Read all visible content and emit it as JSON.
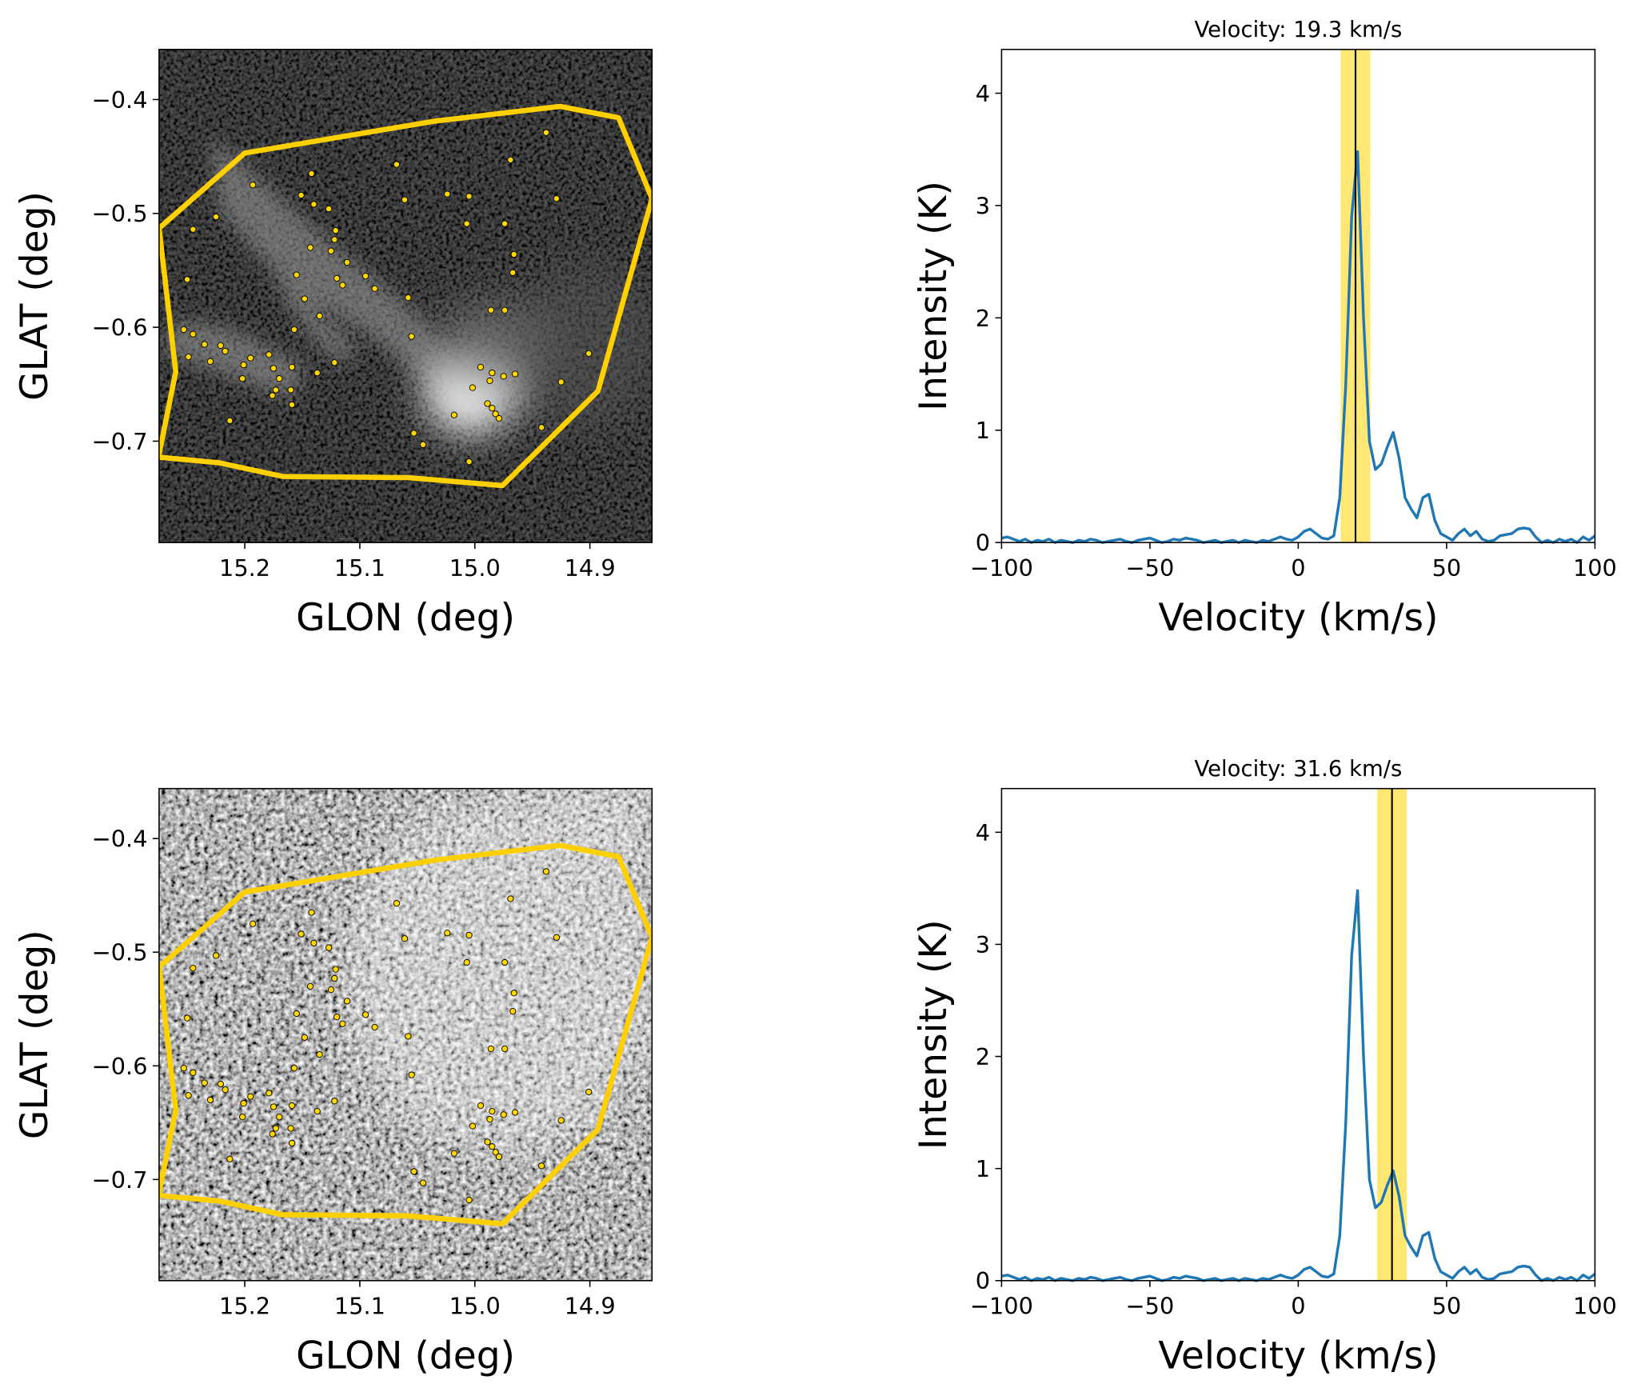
{
  "chart_data": [
    {
      "type": "scatter",
      "xlabel": "GLON (deg)",
      "ylabel": "GLAT (deg)",
      "xlim": [
        15.2745,
        14.846
      ],
      "ylim": [
        -0.789,
        -0.356
      ],
      "xticks": [
        15.2,
        15.1,
        {
          "value": 15.0,
          "label": "15.0"
        },
        14.9
      ],
      "yticks": [
        {
          "value": -0.4,
          "label": "−0.4"
        },
        {
          "value": -0.5,
          "label": "−0.5"
        },
        {
          "value": -0.6,
          "label": "−0.6"
        },
        {
          "value": -0.7,
          "label": "−0.7"
        }
      ],
      "color": "#ffd700",
      "polygon_color": "#ffd000",
      "polygon": {
        "x": [
          15.2745,
          15.2,
          15.035,
          14.926,
          14.875,
          14.846,
          14.893,
          14.976,
          15.058,
          15.167,
          15.222,
          15.275,
          15.26,
          15.2745
        ],
        "y": [
          -0.513,
          -0.447,
          -0.419,
          -0.406,
          -0.416,
          -0.487,
          -0.656,
          -0.739,
          -0.732,
          -0.731,
          -0.719,
          -0.714,
          -0.639,
          -0.513
        ]
      },
      "x": [
        14.938,
        14.969,
        15.068,
        15.142,
        15.193,
        14.929,
        15.061,
        15.024,
        15.005,
        15.151,
        15.14,
        15.127,
        15.225,
        15.245,
        15.007,
        14.974,
        15.121,
        15.122,
        15.143,
        15.125,
        14.966,
        15.111,
        14.967,
        15.095,
        15.155,
        15.12,
        15.25,
        15.115,
        15.087,
        15.148,
        15.058,
        14.986,
        14.974,
        15.135,
        15.157,
        15.055,
        15.253,
        15.245,
        15.235,
        15.221,
        15.217,
        15.249,
        15.23,
        15.179,
        15.195,
        15.201,
        15.122,
        15.175,
        15.159,
        14.901,
        14.995,
        14.985,
        14.965,
        14.975,
        14.987,
        15.202,
        15.17,
        15.137,
        15.002,
        14.925,
        15.173,
        15.16,
        15.176,
        14.989,
        14.985,
        14.982,
        14.979,
        15.159,
        15.018,
        15.213,
        14.942,
        15.053,
        15.045,
        15.005
      ],
      "y": [
        -0.429,
        -0.453,
        -0.457,
        -0.465,
        -0.475,
        -0.487,
        -0.488,
        -0.483,
        -0.485,
        -0.484,
        -0.492,
        -0.496,
        -0.503,
        -0.514,
        -0.509,
        -0.509,
        -0.515,
        -0.523,
        -0.53,
        -0.533,
        -0.536,
        -0.543,
        -0.552,
        -0.555,
        -0.554,
        -0.557,
        -0.558,
        -0.563,
        -0.566,
        -0.575,
        -0.574,
        -0.585,
        -0.585,
        -0.59,
        -0.602,
        -0.608,
        -0.602,
        -0.606,
        -0.615,
        -0.616,
        -0.621,
        -0.626,
        -0.63,
        -0.624,
        -0.627,
        -0.633,
        -0.631,
        -0.636,
        -0.635,
        -0.623,
        -0.635,
        -0.64,
        -0.641,
        -0.643,
        -0.647,
        -0.645,
        -0.645,
        -0.64,
        -0.653,
        -0.648,
        -0.655,
        -0.655,
        -0.66,
        -0.667,
        -0.671,
        -0.676,
        -0.68,
        -0.668,
        -0.677,
        -0.682,
        -0.688,
        -0.693,
        -0.703,
        -0.718
      ]
    },
    {
      "type": "line",
      "title": "Velocity: 19.3 km/s",
      "xlabel": "Velocity (km/s)",
      "ylabel": "Intensity (K)",
      "xlim": [
        -100,
        100
      ],
      "ylim": [
        0,
        4.39
      ],
      "xticks": [
        {
          "value": -100,
          "label": "−100"
        },
        {
          "value": -50,
          "label": "−50"
        },
        0,
        50,
        100
      ],
      "yticks": [
        0,
        1,
        2,
        3,
        4
      ],
      "vline": 19.3,
      "band": [
        14.3,
        24.3
      ],
      "band_color": "#ffe35c",
      "color": "#1f77b4",
      "x": [
        -100,
        -98,
        -96,
        -94,
        -92,
        -90,
        -88,
        -86,
        -84,
        -82,
        -80,
        -78,
        -76,
        -74,
        -72,
        -70,
        -68,
        -66,
        -64,
        -62,
        -60,
        -58,
        -56,
        -54,
        -52,
        -50,
        -48,
        -46,
        -44,
        -42,
        -40,
        -38,
        -36,
        -34,
        -32,
        -30,
        -28,
        -26,
        -24,
        -22,
        -20,
        -18,
        -16,
        -14,
        -12,
        -10,
        -8,
        -6,
        -4,
        -2,
        0,
        2,
        4,
        6,
        8,
        10,
        12,
        14,
        16,
        18,
        20,
        22,
        24,
        26,
        28,
        30,
        32,
        34,
        36,
        38,
        40,
        42,
        44,
        46,
        48,
        50,
        52,
        54,
        56,
        58,
        60,
        62,
        64,
        66,
        68,
        70,
        72,
        74,
        76,
        78,
        80,
        82,
        84,
        86,
        88,
        90,
        92,
        94,
        96,
        98,
        100
      ],
      "values": [
        0.04,
        0.05,
        0.03,
        0.01,
        0.03,
        0.0,
        0.02,
        0.01,
        0.03,
        0.0,
        0.02,
        0.01,
        0.0,
        0.02,
        0.01,
        0.03,
        0.02,
        0.0,
        0.01,
        0.02,
        0.03,
        0.01,
        0.0,
        0.02,
        0.03,
        0.04,
        0.02,
        0.0,
        0.01,
        0.03,
        0.02,
        0.04,
        0.03,
        0.02,
        0.0,
        0.01,
        0.02,
        0.0,
        0.01,
        0.02,
        0.0,
        0.02,
        0.01,
        0.0,
        0.02,
        0.01,
        0.03,
        0.05,
        0.03,
        0.02,
        0.05,
        0.1,
        0.12,
        0.08,
        0.04,
        0.03,
        0.06,
        0.4,
        1.4,
        2.9,
        3.48,
        2.0,
        0.9,
        0.65,
        0.7,
        0.85,
        0.98,
        0.75,
        0.4,
        0.3,
        0.22,
        0.4,
        0.43,
        0.2,
        0.08,
        0.05,
        0.02,
        0.08,
        0.12,
        0.06,
        0.1,
        0.03,
        0.01,
        0.02,
        0.06,
        0.07,
        0.08,
        0.12,
        0.13,
        0.12,
        0.05,
        0.0,
        0.02,
        0.0,
        0.03,
        0.01,
        0.03,
        0.0,
        0.05,
        0.02,
        0.06
      ]
    },
    {
      "type": "scatter",
      "xlabel": "GLON (deg)",
      "ylabel": "GLAT (deg)",
      "xlim": [
        15.2745,
        14.846
      ],
      "ylim": [
        -0.789,
        -0.356
      ],
      "xticks": [
        15.2,
        15.1,
        {
          "value": 15.0,
          "label": "15.0"
        },
        14.9
      ],
      "yticks": [
        {
          "value": -0.4,
          "label": "−0.4"
        },
        {
          "value": -0.5,
          "label": "−0.5"
        },
        {
          "value": -0.6,
          "label": "−0.6"
        },
        {
          "value": -0.7,
          "label": "−0.7"
        }
      ],
      "color": "#ffd700",
      "polygon_color": "#ffd000",
      "polygon": {
        "x": [
          15.2745,
          15.2,
          15.035,
          14.926,
          14.875,
          14.846,
          14.893,
          14.976,
          15.058,
          15.167,
          15.222,
          15.275,
          15.26,
          15.2745
        ],
        "y": [
          -0.513,
          -0.447,
          -0.419,
          -0.406,
          -0.416,
          -0.487,
          -0.656,
          -0.739,
          -0.732,
          -0.731,
          -0.719,
          -0.714,
          -0.639,
          -0.513
        ]
      },
      "x": [
        14.938,
        14.969,
        15.068,
        15.142,
        15.193,
        14.929,
        15.061,
        15.024,
        15.005,
        15.151,
        15.14,
        15.127,
        15.225,
        15.245,
        15.007,
        14.974,
        15.121,
        15.122,
        15.143,
        15.125,
        14.966,
        15.111,
        14.967,
        15.095,
        15.155,
        15.12,
        15.25,
        15.115,
        15.087,
        15.148,
        15.058,
        14.986,
        14.974,
        15.135,
        15.157,
        15.055,
        15.253,
        15.245,
        15.235,
        15.221,
        15.217,
        15.249,
        15.23,
        15.179,
        15.195,
        15.201,
        15.122,
        15.175,
        15.159,
        14.901,
        14.995,
        14.985,
        14.965,
        14.975,
        14.987,
        15.202,
        15.17,
        15.137,
        15.002,
        14.925,
        15.173,
        15.16,
        15.176,
        14.989,
        14.985,
        14.982,
        14.979,
        15.159,
        15.018,
        15.213,
        14.942,
        15.053,
        15.045,
        15.005
      ],
      "y": [
        -0.429,
        -0.453,
        -0.457,
        -0.465,
        -0.475,
        -0.487,
        -0.488,
        -0.483,
        -0.485,
        -0.484,
        -0.492,
        -0.496,
        -0.503,
        -0.514,
        -0.509,
        -0.509,
        -0.515,
        -0.523,
        -0.53,
        -0.533,
        -0.536,
        -0.543,
        -0.552,
        -0.555,
        -0.554,
        -0.557,
        -0.558,
        -0.563,
        -0.566,
        -0.575,
        -0.574,
        -0.585,
        -0.585,
        -0.59,
        -0.602,
        -0.608,
        -0.602,
        -0.606,
        -0.615,
        -0.616,
        -0.621,
        -0.626,
        -0.63,
        -0.624,
        -0.627,
        -0.633,
        -0.631,
        -0.636,
        -0.635,
        -0.623,
        -0.635,
        -0.64,
        -0.641,
        -0.643,
        -0.647,
        -0.645,
        -0.645,
        -0.64,
        -0.653,
        -0.648,
        -0.655,
        -0.655,
        -0.66,
        -0.667,
        -0.671,
        -0.676,
        -0.68,
        -0.668,
        -0.677,
        -0.682,
        -0.688,
        -0.693,
        -0.703,
        -0.718
      ]
    },
    {
      "type": "line",
      "title": "Velocity: 31.6 km/s",
      "xlabel": "Velocity (km/s)",
      "ylabel": "Intensity (K)",
      "xlim": [
        -100,
        100
      ],
      "ylim": [
        0,
        4.39
      ],
      "xticks": [
        {
          "value": -100,
          "label": "−100"
        },
        {
          "value": -50,
          "label": "−50"
        },
        0,
        50,
        100
      ],
      "yticks": [
        0,
        1,
        2,
        3,
        4
      ],
      "vline": 31.6,
      "band": [
        26.6,
        36.6
      ],
      "band_color": "#ffe35c",
      "color": "#1f77b4",
      "x": [
        -100,
        -98,
        -96,
        -94,
        -92,
        -90,
        -88,
        -86,
        -84,
        -82,
        -80,
        -78,
        -76,
        -74,
        -72,
        -70,
        -68,
        -66,
        -64,
        -62,
        -60,
        -58,
        -56,
        -54,
        -52,
        -50,
        -48,
        -46,
        -44,
        -42,
        -40,
        -38,
        -36,
        -34,
        -32,
        -30,
        -28,
        -26,
        -24,
        -22,
        -20,
        -18,
        -16,
        -14,
        -12,
        -10,
        -8,
        -6,
        -4,
        -2,
        0,
        2,
        4,
        6,
        8,
        10,
        12,
        14,
        16,
        18,
        20,
        22,
        24,
        26,
        28,
        30,
        32,
        34,
        36,
        38,
        40,
        42,
        44,
        46,
        48,
        50,
        52,
        54,
        56,
        58,
        60,
        62,
        64,
        66,
        68,
        70,
        72,
        74,
        76,
        78,
        80,
        82,
        84,
        86,
        88,
        90,
        92,
        94,
        96,
        98,
        100
      ],
      "values": [
        0.04,
        0.05,
        0.03,
        0.01,
        0.03,
        0.0,
        0.02,
        0.01,
        0.03,
        0.0,
        0.02,
        0.01,
        0.0,
        0.02,
        0.01,
        0.03,
        0.02,
        0.0,
        0.01,
        0.02,
        0.03,
        0.01,
        0.0,
        0.02,
        0.03,
        0.04,
        0.02,
        0.0,
        0.01,
        0.03,
        0.02,
        0.04,
        0.03,
        0.02,
        0.0,
        0.01,
        0.02,
        0.0,
        0.01,
        0.02,
        0.0,
        0.02,
        0.01,
        0.0,
        0.02,
        0.01,
        0.03,
        0.05,
        0.03,
        0.02,
        0.05,
        0.1,
        0.12,
        0.08,
        0.04,
        0.03,
        0.06,
        0.4,
        1.4,
        2.9,
        3.48,
        2.0,
        0.9,
        0.65,
        0.7,
        0.85,
        0.98,
        0.75,
        0.4,
        0.3,
        0.22,
        0.4,
        0.43,
        0.2,
        0.08,
        0.05,
        0.02,
        0.08,
        0.12,
        0.06,
        0.1,
        0.03,
        0.01,
        0.02,
        0.06,
        0.07,
        0.08,
        0.12,
        0.13,
        0.12,
        0.05,
        0.0,
        0.02,
        0.0,
        0.03,
        0.01,
        0.03,
        0.0,
        0.05,
        0.02,
        0.06
      ]
    }
  ]
}
